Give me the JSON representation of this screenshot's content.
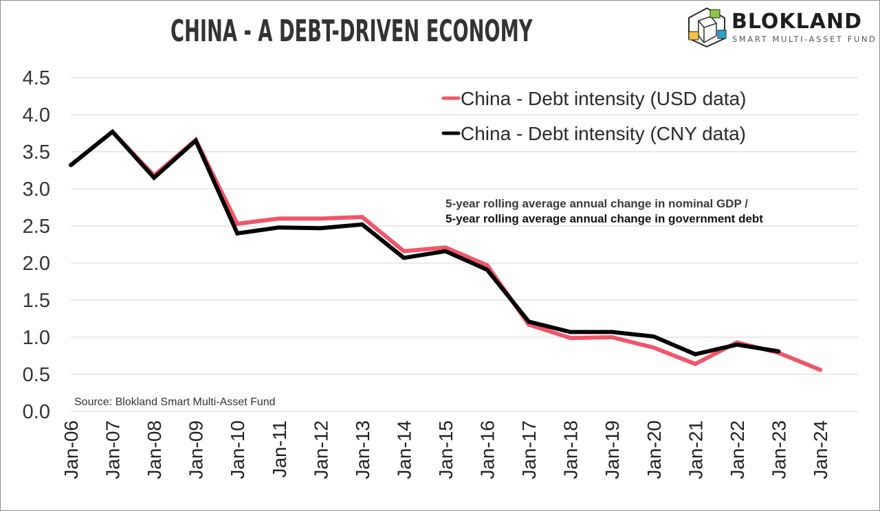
{
  "header": {
    "title": "CHINA - A DEBT-DRIVEN ECONOMY"
  },
  "logo": {
    "name": "BLOKLAND",
    "subtitle": "SMART MULTI-ASSET FUND",
    "cube_colors": [
      "#8dc63f",
      "#f6c244",
      "#2aa3cf"
    ]
  },
  "chart_data": {
    "type": "line",
    "title": "CHINA - A DEBT-DRIVEN ECONOMY",
    "xlabel": "",
    "ylabel": "",
    "categories": [
      "Jan-06",
      "Jan-07",
      "Jan-08",
      "Jan-09",
      "Jan-10",
      "Jan-11",
      "Jan-12",
      "Jan-13",
      "Jan-14",
      "Jan-15",
      "Jan-16",
      "Jan-17",
      "Jan-18",
      "Jan-19",
      "Jan-20",
      "Jan-21",
      "Jan-22",
      "Jan-23",
      "Jan-24"
    ],
    "yticks": [
      "0.0",
      "0.5",
      "1.0",
      "1.5",
      "2.0",
      "2.5",
      "3.0",
      "3.5",
      "4.0",
      "4.5"
    ],
    "ylim": [
      0,
      4.5
    ],
    "grid": true,
    "legend_position": "top-right",
    "series": [
      {
        "name": "China - Debt intensity (USD data)",
        "color": "#f0566a",
        "values": [
          3.32,
          3.77,
          3.18,
          3.66,
          2.53,
          2.6,
          2.6,
          2.62,
          2.16,
          2.21,
          1.97,
          1.17,
          0.99,
          1.0,
          0.86,
          0.64,
          0.93,
          0.79,
          0.56
        ]
      },
      {
        "name": "China - Debt intensity (CNY data)",
        "color": "#000000",
        "values": [
          3.32,
          3.77,
          3.15,
          3.65,
          2.4,
          2.48,
          2.47,
          2.52,
          2.07,
          2.16,
          1.91,
          1.21,
          1.07,
          1.07,
          1.01,
          0.77,
          0.9,
          0.81,
          null
        ]
      }
    ],
    "annotations": [
      "5-year rolling average annual change in nominal GDP /",
      "5-year rolling average annual change in government debt"
    ],
    "source": "Source: Blokland Smart Multi-Asset Fund"
  }
}
